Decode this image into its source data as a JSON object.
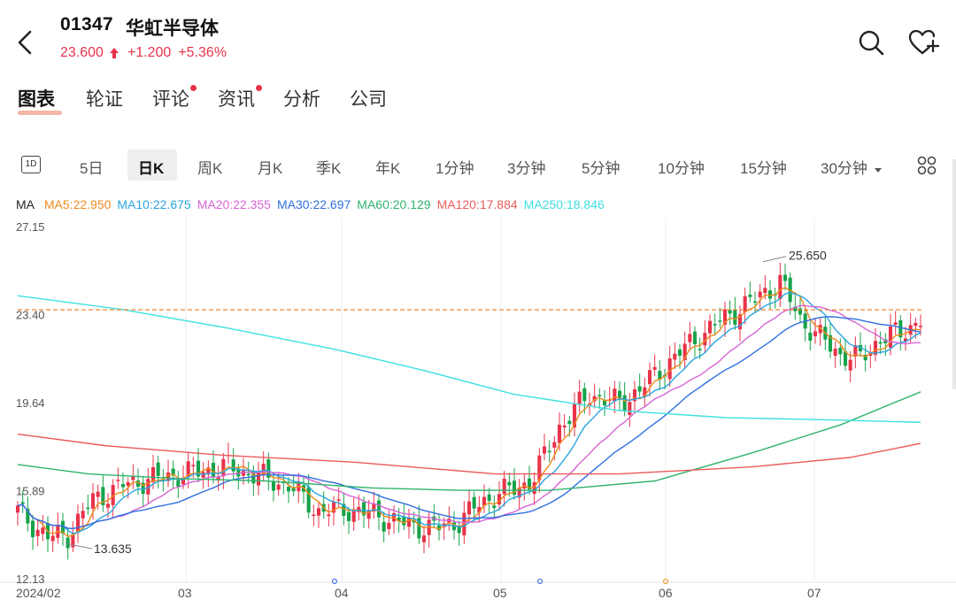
{
  "header": {
    "code": "01347",
    "name": "华虹半导体",
    "price": "23.600",
    "change": "+1.200",
    "change_pct": "+5.36%",
    "up_color": "#e8334a"
  },
  "tabs": [
    {
      "label": "图表",
      "active": true,
      "dot": false
    },
    {
      "label": "轮证",
      "active": false,
      "dot": false
    },
    {
      "label": "评论",
      "active": false,
      "dot": true
    },
    {
      "label": "资讯",
      "active": false,
      "dot": true
    },
    {
      "label": "分析",
      "active": false,
      "dot": false
    },
    {
      "label": "公司",
      "active": false,
      "dot": false
    }
  ],
  "periods": {
    "day_icon": "1D",
    "items": [
      "5日",
      "日K",
      "周K",
      "月K",
      "季K",
      "年K",
      "1分钟",
      "3分钟",
      "5分钟",
      "10分钟",
      "15分钟",
      "30分钟"
    ],
    "active": "日K"
  },
  "ma": {
    "label": "MA",
    "items": [
      {
        "text": "MA5:22.950",
        "color": "#f08a1c"
      },
      {
        "text": "MA10:22.675",
        "color": "#2aa5e0"
      },
      {
        "text": "MA20:22.355",
        "color": "#d764d6"
      },
      {
        "text": "MA30:22.697",
        "color": "#2f6fe0"
      },
      {
        "text": "MA60:20.129",
        "color": "#2fb36b"
      },
      {
        "text": "MA120:17.884",
        "color": "#ec5a5a"
      },
      {
        "text": "MA250:18.846",
        "color": "#3fe0e0"
      }
    ]
  },
  "chart_data": {
    "type": "candlestick",
    "y_ticks": [
      "27.15",
      "23.40",
      "19.64",
      "15.89",
      "12.13"
    ],
    "ylim": [
      12.13,
      27.15
    ],
    "x_labels": [
      "2024/02",
      "03",
      "04",
      "05",
      "06",
      "07"
    ],
    "last_price": 23.6,
    "annotations": [
      {
        "text": "25.650",
        "value": 25.65
      },
      {
        "text": "13.635",
        "value": 13.635
      }
    ],
    "colors": {
      "up": "#e8334a",
      "down": "#16a34a",
      "last_line": "#f07a1f"
    }
  }
}
